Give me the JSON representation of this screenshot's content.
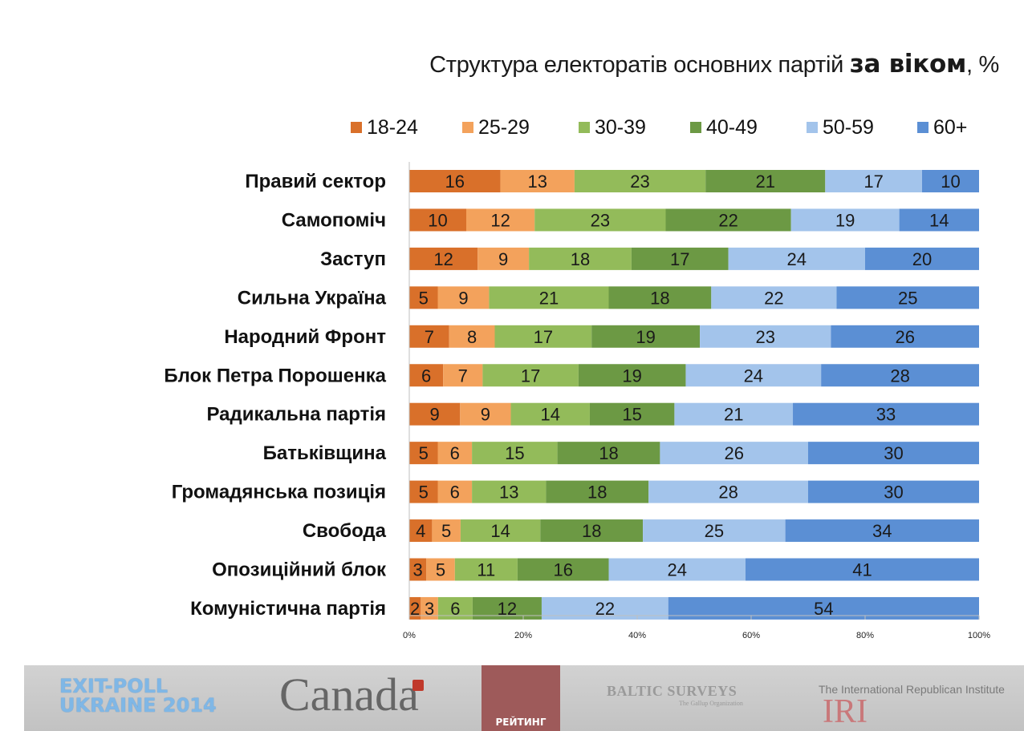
{
  "title": {
    "prefix": "Структура електоратів основних партій ",
    "bold": "за віком",
    "suffix": ", %"
  },
  "chart_data": {
    "type": "bar",
    "orientation": "horizontal",
    "stacked": "percent",
    "categories": [
      "Правий сектор",
      "Самопоміч",
      "Заступ",
      "Сильна Україна",
      "Народний Фронт",
      "Блок Петра Порошенка",
      "Радикальна партія",
      "Батьківщина",
      "Громадянська позиція",
      "Свобода",
      "Опозиційний блок",
      "Комуністична партія"
    ],
    "series": [
      {
        "name": "18-24",
        "color": "#d9702a",
        "values": [
          16,
          10,
          12,
          5,
          7,
          6,
          9,
          5,
          5,
          4,
          3,
          2
        ]
      },
      {
        "name": "25-29",
        "color": "#f3a25c",
        "values": [
          13,
          12,
          9,
          9,
          8,
          7,
          9,
          6,
          6,
          5,
          5,
          3
        ]
      },
      {
        "name": "30-39",
        "color": "#93bb5a",
        "values": [
          23,
          23,
          18,
          21,
          17,
          17,
          14,
          15,
          13,
          14,
          11,
          6
        ]
      },
      {
        "name": "40-49",
        "color": "#6c9944",
        "values": [
          21,
          22,
          17,
          18,
          19,
          19,
          15,
          18,
          18,
          18,
          16,
          12
        ]
      },
      {
        "name": "50-59",
        "color": "#a3c4eb",
        "values": [
          17,
          19,
          24,
          22,
          23,
          24,
          21,
          26,
          28,
          25,
          24,
          22
        ]
      },
      {
        "name": "60+",
        "color": "#5b8fd4",
        "values": [
          10,
          14,
          20,
          25,
          26,
          28,
          33,
          30,
          30,
          34,
          41,
          54
        ]
      }
    ],
    "x_ticks": [
      "0%",
      "20%",
      "40%",
      "60%",
      "80%",
      "100%"
    ],
    "xlim": [
      0,
      100
    ],
    "legend_position": "top",
    "grid": false
  },
  "footer": {
    "exit_poll_line1": "EXIT-POLL",
    "exit_poll_line2": "UKRAINE 2014",
    "canada": "Canada",
    "reyting": "РЕЙТИНГ",
    "baltic": "BALTIC SURVEYS",
    "baltic_sub": "The Gallup Organization",
    "iri_name": "The International Republican Institute",
    "iri": "IRI"
  }
}
